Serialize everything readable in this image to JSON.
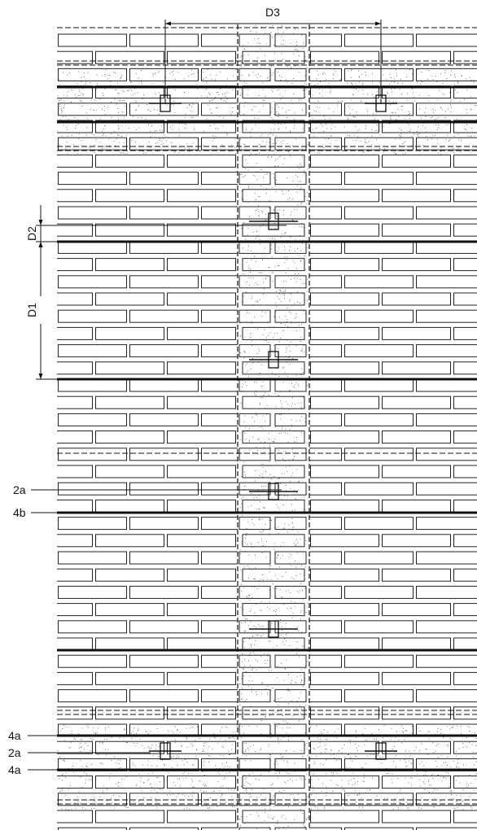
{
  "drawing": {
    "colors": {
      "line": "#111111",
      "brick_stroke": "#222222",
      "speckle": "#555555",
      "background": "#ffffff"
    },
    "dimension_labels": {
      "d1": "D1",
      "d2": "D2",
      "d3": "D3"
    },
    "callout_labels": {
      "a": "2a",
      "b": "4b",
      "c": "4a",
      "d": "2a",
      "e": "4a"
    }
  }
}
